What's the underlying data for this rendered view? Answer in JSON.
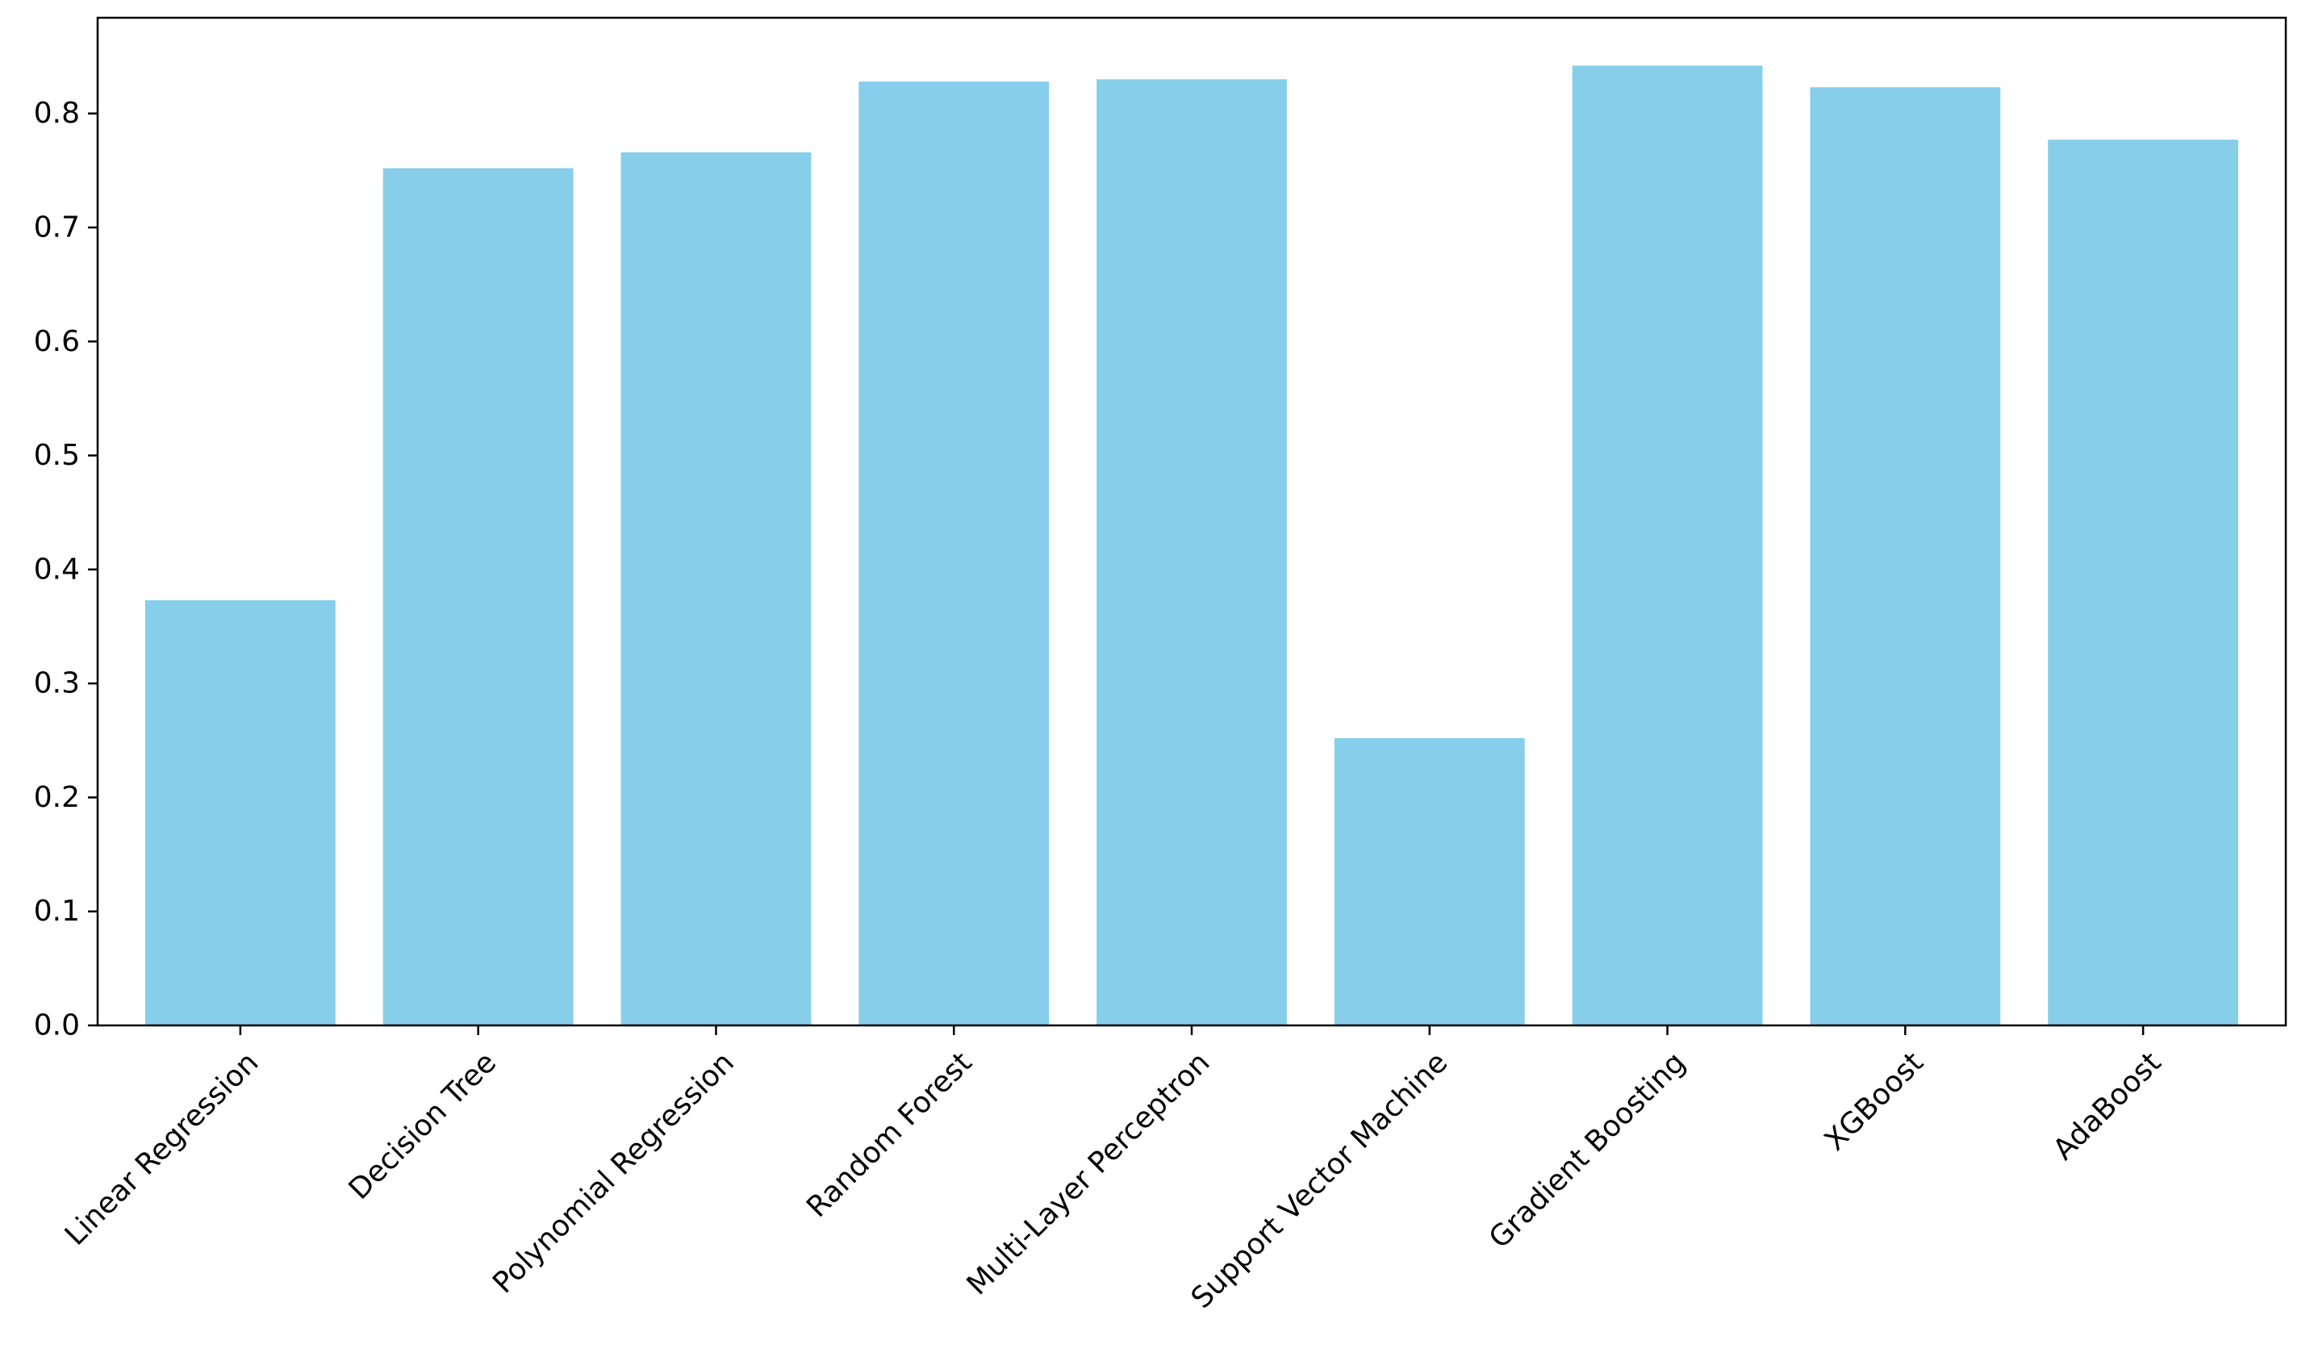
{
  "chart_data": {
    "type": "bar",
    "title": "",
    "xlabel": "",
    "ylabel": "",
    "categories": [
      "Linear Regression",
      "Decision Tree",
      "Polynomial Regression",
      "Random Forest",
      "Multi-Layer Perceptron",
      "Support Vector Machine",
      "Gradient Boosting",
      "XGBoost",
      "AdaBoost"
    ],
    "values": [
      0.373,
      0.752,
      0.766,
      0.828,
      0.83,
      0.252,
      0.842,
      0.823,
      0.777
    ],
    "ylim": [
      0,
      0.884
    ],
    "yticks": [
      0.0,
      0.1,
      0.2,
      0.3,
      0.4,
      0.5,
      0.6,
      0.7,
      0.8
    ],
    "ytick_labels": [
      "0.0",
      "0.1",
      "0.2",
      "0.3",
      "0.4",
      "0.5",
      "0.6",
      "0.7",
      "0.8"
    ],
    "bar_color": "#87ceeb",
    "grid": false,
    "legend": "none",
    "xtick_rotation_deg": 45
  }
}
